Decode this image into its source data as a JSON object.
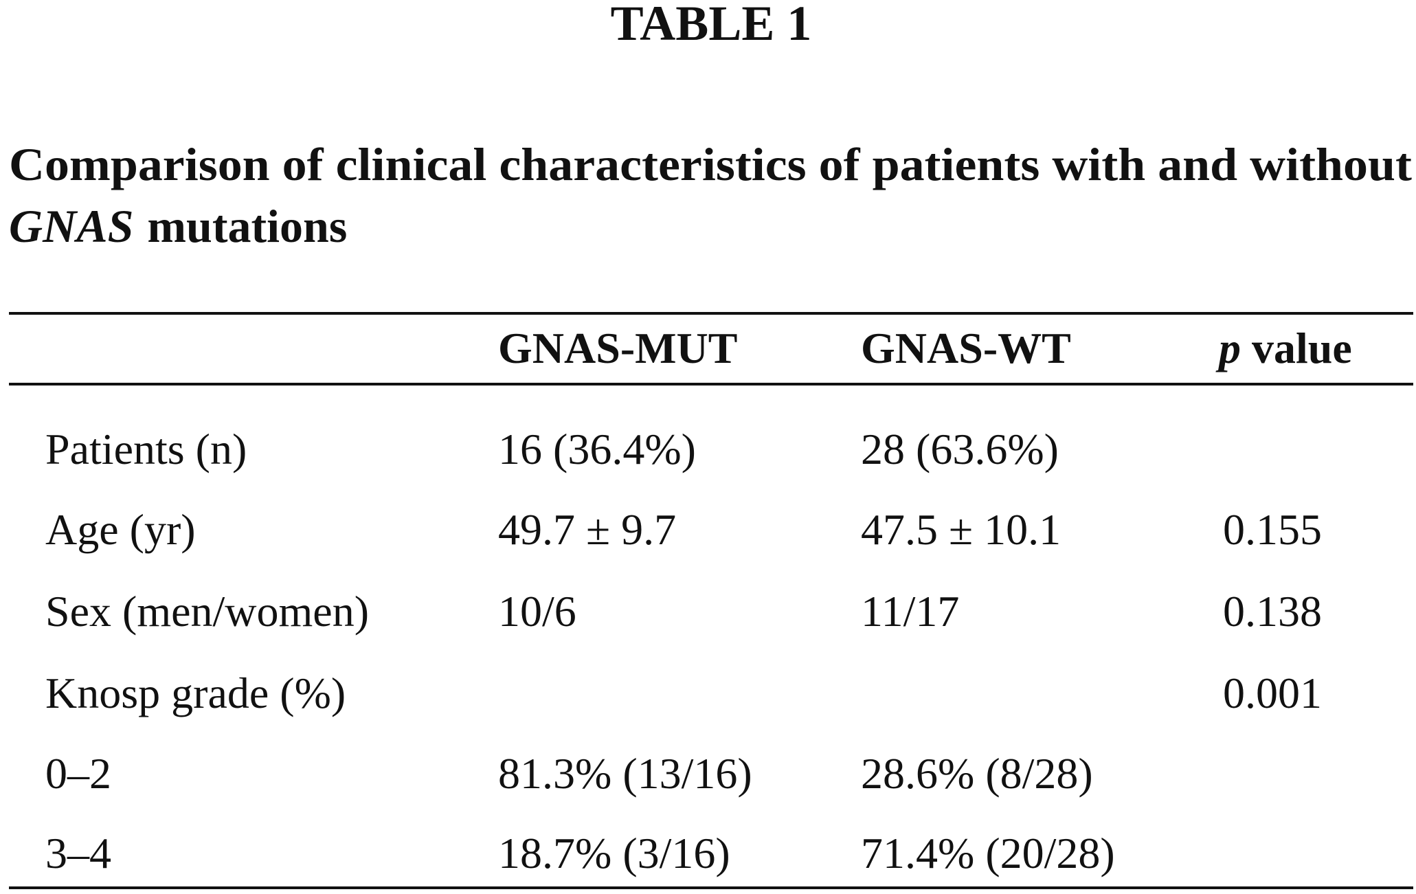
{
  "header": {
    "label": "TABLE 1"
  },
  "caption": [
    "Comparison of clinical characteristics of patients with and without",
    "GNAS",
    "mutations"
  ],
  "table": {
    "columns": [
      "GNAS-MUT",
      "GNAS-WT"
    ],
    "p_column": [
      "p",
      "value"
    ],
    "rows": [
      [
        "Patients (n)",
        "16 (36.4%)",
        "28 (63.6%)",
        null
      ],
      [
        "Age (yr)",
        "49.7 ± 9.7",
        "47.5 ± 10.1",
        "0.155"
      ],
      [
        "Sex (men/women)",
        "10/6",
        "11/17",
        "0.138"
      ],
      [
        "Knosp grade (%)",
        null,
        null,
        "0.001"
      ],
      [
        "0–2",
        "81.3% (13/16)",
        "28.6% (8/28)",
        null
      ],
      [
        "3–4",
        "18.7% (3/16)",
        "71.4% (20/28)",
        null
      ]
    ]
  }
}
